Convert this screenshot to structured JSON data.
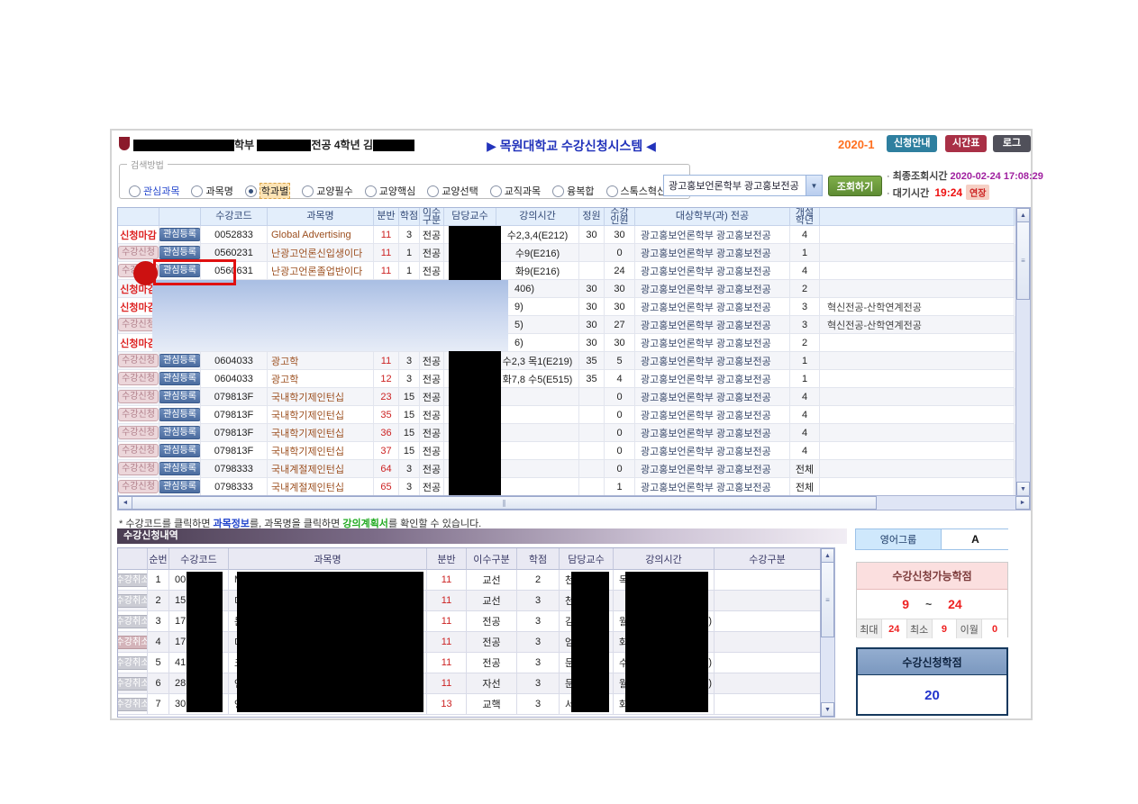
{
  "app": {
    "title": "▶ 목원대학교 수강신청시스템 ◀",
    "semester": "2020-1",
    "nav_buttons": [
      {
        "label": "신청안내",
        "color": "#2e7f9f"
      },
      {
        "label": "시간표",
        "color": "#a93046"
      },
      {
        "label": "로그아웃",
        "color": "#50505a"
      }
    ],
    "user": {
      "seg1": "학부",
      "seg2": "전공 4학년 김"
    }
  },
  "search": {
    "legend": "검색방법",
    "options": [
      "관심과목",
      "과목명",
      "학과별",
      "교양필수",
      "교양핵심",
      "교양선택",
      "교직과목",
      "융복합",
      "스톡스혁신교과"
    ],
    "selected": "학과별",
    "dept_select": "광고홍보언론학부 광고홍보전공",
    "query_button": "조회하기",
    "last_query_label": "최종조회시간",
    "last_query_time": "2020-02-24 17:08:29",
    "wait_label": "대기시간",
    "wait_time": "19:24",
    "extend_badge": "연장"
  },
  "labels": {
    "closed": "신청마감",
    "open": "수강신청",
    "wish": "관심등록",
    "cancel": "수강취소"
  },
  "main_table": {
    "headers": [
      "",
      "",
      "수강코드",
      "과목명",
      "분반",
      "학점",
      "이수\n구분",
      "담당교수",
      "강의시간",
      "정원",
      "수강\n인원",
      "대상학부(과) 전공",
      "개설\n학년",
      ""
    ],
    "rows": [
      {
        "status": "closed",
        "wish": true,
        "code": "0052833",
        "name": "Global Advertising",
        "bun": "11",
        "cr": "3",
        "type": "전공",
        "time": "수2,3,4(E212)",
        "cap": "30",
        "enr": "30",
        "target": "광고홍보언론학부 광고홍보전공",
        "year": "4",
        "extra": ""
      },
      {
        "status": "open",
        "wish": true,
        "code": "0560231",
        "name": "난광고언론신입생이다",
        "bun": "11",
        "cr": "1",
        "type": "전공",
        "time": "수9(E216)",
        "cap": "",
        "enr": "0",
        "target": "광고홍보언론학부 광고홍보전공",
        "year": "1",
        "extra": ""
      },
      {
        "status": "open",
        "wish": true,
        "annotated": true,
        "code": "0560631",
        "name": "난광고언론졸업반이다",
        "bun": "11",
        "cr": "1",
        "type": "전공",
        "time": "화9(E216)",
        "cap": "",
        "enr": "24",
        "target": "광고홍보언론학부 광고홍보전공",
        "year": "4",
        "extra": ""
      },
      {
        "status": "closed",
        "wish": false,
        "blurred": true,
        "code": "",
        "name": "",
        "bun": "",
        "cr": "",
        "type": "",
        "time": "406)",
        "cap": "30",
        "enr": "30",
        "target": "광고홍보언론학부 광고홍보전공",
        "year": "2",
        "extra": ""
      },
      {
        "status": "closed",
        "wish": false,
        "blurred": true,
        "code": "",
        "name": "",
        "bun": "",
        "cr": "",
        "type": "",
        "time": "9)",
        "cap": "30",
        "enr": "30",
        "target": "광고홍보언론학부 광고홍보전공",
        "year": "3",
        "extra": "혁신전공-산학연계전공"
      },
      {
        "status": "open",
        "wish": false,
        "blurred": true,
        "code": "",
        "name": "",
        "bun": "",
        "cr": "",
        "type": "",
        "time": "5)",
        "cap": "30",
        "enr": "27",
        "target": "광고홍보언론학부 광고홍보전공",
        "year": "3",
        "extra": "혁신전공-산학연계전공"
      },
      {
        "status": "closed",
        "wish": false,
        "blurred": true,
        "code": "",
        "name": "",
        "bun": "",
        "cr": "",
        "type": "",
        "time": "6)",
        "cap": "30",
        "enr": "30",
        "target": "광고홍보언론학부 광고홍보전공",
        "year": "2",
        "extra": ""
      },
      {
        "status": "open",
        "wish": true,
        "code": "0604033",
        "name": "광고학",
        "bun": "11",
        "cr": "3",
        "type": "전공",
        "time": "수2,3 목1(E219)",
        "cap": "35",
        "enr": "5",
        "target": "광고홍보언론학부 광고홍보전공",
        "year": "1",
        "extra": ""
      },
      {
        "status": "open",
        "wish": true,
        "code": "0604033",
        "name": "광고학",
        "bun": "12",
        "cr": "3",
        "type": "전공",
        "time": "화7,8 수5(E515)",
        "cap": "35",
        "enr": "4",
        "target": "광고홍보언론학부 광고홍보전공",
        "year": "1",
        "extra": ""
      },
      {
        "status": "open",
        "wish": true,
        "code": "079813F",
        "name": "국내학기제인턴십",
        "bun": "23",
        "cr": "15",
        "type": "전공",
        "time": "",
        "cap": "",
        "enr": "0",
        "target": "광고홍보언론학부 광고홍보전공",
        "year": "4",
        "extra": ""
      },
      {
        "status": "open",
        "wish": true,
        "code": "079813F",
        "name": "국내학기제인턴십",
        "bun": "35",
        "cr": "15",
        "type": "전공",
        "time": "",
        "cap": "",
        "enr": "0",
        "target": "광고홍보언론학부 광고홍보전공",
        "year": "4",
        "extra": ""
      },
      {
        "status": "open",
        "wish": true,
        "code": "079813F",
        "name": "국내학기제인턴십",
        "bun": "36",
        "cr": "15",
        "type": "전공",
        "time": "",
        "cap": "",
        "enr": "0",
        "target": "광고홍보언론학부 광고홍보전공",
        "year": "4",
        "extra": ""
      },
      {
        "status": "open",
        "wish": true,
        "code": "079813F",
        "name": "국내학기제인턴십",
        "bun": "37",
        "cr": "15",
        "type": "전공",
        "time": "",
        "cap": "",
        "enr": "0",
        "target": "광고홍보언론학부 광고홍보전공",
        "year": "4",
        "extra": ""
      },
      {
        "status": "open",
        "wish": true,
        "code": "0798333",
        "name": "국내계절제인턴십",
        "bun": "64",
        "cr": "3",
        "type": "전공",
        "time": "",
        "cap": "",
        "enr": "0",
        "target": "광고홍보언론학부 광고홍보전공",
        "year": "전체",
        "extra": ""
      },
      {
        "status": "open",
        "wish": true,
        "code": "0798333",
        "name": "국내계절제인턴십",
        "bun": "65",
        "cr": "3",
        "type": "전공",
        "time": "",
        "cap": "",
        "enr": "1",
        "target": "광고홍보언론학부 광고홍보전공",
        "year": "전체",
        "extra": ""
      }
    ]
  },
  "note": {
    "parts": [
      "* 수강코드를 클릭하면 ",
      "과목정보",
      "를, 과목명을 클릭하면 ",
      "강의계획서",
      "를 확인할 수 있습니다."
    ]
  },
  "enroll_section": {
    "title": "수강신청내역",
    "headers": [
      "",
      "순번",
      "수강코드",
      "과목명",
      "분반",
      "이수구분",
      "학점",
      "담당교수",
      "강의시간",
      "수강구분"
    ],
    "rows": [
      {
        "no": "1",
        "code_prefix": "00",
        "name_prefix": "M",
        "bun": "11",
        "type": "교선",
        "cr": "2",
        "prof_prefix": "천",
        "time_prefix": "목",
        "time_suffix": "",
        "warm": false
      },
      {
        "no": "2",
        "code_prefix": "15",
        "name_prefix": "미",
        "bun": "11",
        "type": "교선",
        "cr": "3",
        "prof_prefix": "천",
        "time_prefix": "",
        "time_suffix": "",
        "warm": false
      },
      {
        "no": "3",
        "code_prefix": "17",
        "name_prefix": "문",
        "bun": "11",
        "type": "전공",
        "cr": "3",
        "prof_prefix": "김",
        "time_prefix": "월",
        "time_suffix": ")",
        "warm": false
      },
      {
        "no": "4",
        "code_prefix": "17",
        "name_prefix": "미",
        "bun": "11",
        "type": "전공",
        "cr": "3",
        "prof_prefix": "엄",
        "time_prefix": "화",
        "time_suffix": "",
        "warm": true
      },
      {
        "no": "5",
        "code_prefix": "41",
        "name_prefix": "크",
        "bun": "11",
        "type": "전공",
        "cr": "3",
        "prof_prefix": "문",
        "time_prefix": "수",
        "time_suffix": ")",
        "warm": false
      },
      {
        "no": "6",
        "code_prefix": "28",
        "name_prefix": "언",
        "bun": "11",
        "type": "자선",
        "cr": "3",
        "prof_prefix": "문",
        "time_prefix": "월",
        "time_suffix": ")",
        "warm": false
      },
      {
        "no": "7",
        "code_prefix": "30",
        "name_prefix": "영",
        "bun": "13",
        "type": "교핵",
        "cr": "3",
        "prof_prefix": "서",
        "time_prefix": "화",
        "time_suffix": "",
        "warm": false
      }
    ]
  },
  "panel": {
    "english_label": "영어그룹",
    "english_value": "A",
    "avail": {
      "title": "수강신청가능학점",
      "min": "9",
      "tilde": "~",
      "max": "24",
      "cells": [
        {
          "label": "최대",
          "value": "24"
        },
        {
          "label": "최소",
          "value": "9"
        },
        {
          "label": "이월",
          "value": "0"
        }
      ]
    },
    "total": {
      "title": "수강신청학점",
      "value": "20"
    }
  },
  "colors": {
    "title_blue": "#2233bb",
    "semester_orange": "#ff6f1f",
    "query_time_purple": "#a020a0",
    "wait_red": "#ee1111",
    "wish_button_blue": "#4c6da0",
    "open_button_pink": "#ecd6da",
    "link_course_info": "#2244cc",
    "link_syllabus": "#22aa22",
    "annotation_red": "#e01010"
  }
}
